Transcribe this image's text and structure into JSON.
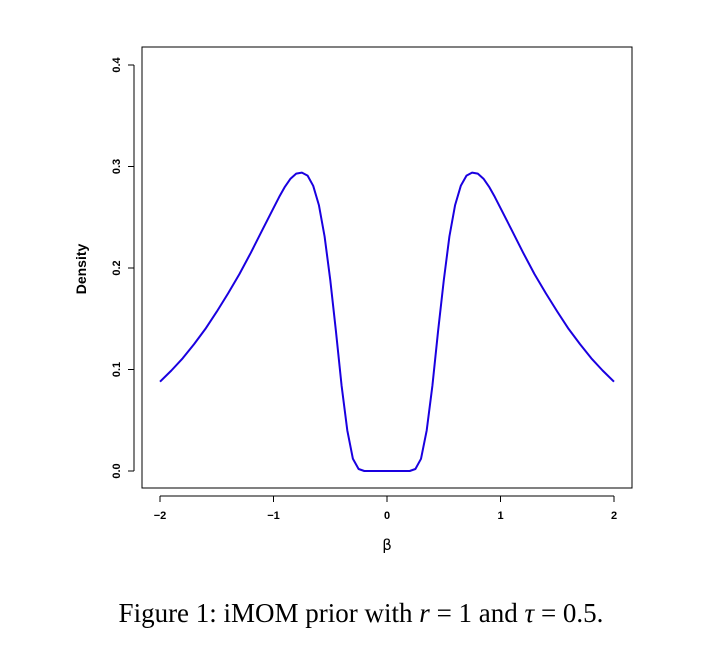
{
  "caption": {
    "prefix": "Figure 1: iMOM prior with ",
    "r_symbol": "r",
    "r_value": " = 1 and ",
    "tau_symbol": "τ",
    "tau_value": " = 0.5."
  },
  "chart_data": {
    "type": "line",
    "title": "",
    "xlabel": "β",
    "ylabel": "Density",
    "xlim": [
      -2,
      2
    ],
    "ylim": [
      0,
      0.4
    ],
    "x_ticks": [
      -2,
      -1,
      0,
      1,
      2
    ],
    "x_tick_labels": [
      "−2",
      "−1",
      "0",
      "1",
      "2"
    ],
    "y_ticks": [
      0.0,
      0.1,
      0.2,
      0.3,
      0.4
    ],
    "y_tick_labels": [
      "0.0",
      "0.1",
      "0.2",
      "0.3",
      "0.4"
    ],
    "grid": false,
    "line_color": "#1a00e0",
    "series": [
      {
        "x": [
          -2.0,
          -1.9,
          -1.8,
          -1.7,
          -1.6,
          -1.5,
          -1.4,
          -1.3,
          -1.2,
          -1.1,
          -1.0,
          -0.95,
          -0.9,
          -0.85,
          -0.8,
          -0.75,
          -0.7,
          -0.65,
          -0.6,
          -0.55,
          -0.5,
          -0.45,
          -0.4,
          -0.35,
          -0.3,
          -0.25,
          -0.2,
          -0.1,
          0.0,
          0.1,
          0.2,
          0.25,
          0.3,
          0.35,
          0.4,
          0.45,
          0.5,
          0.55,
          0.6,
          0.65,
          0.7,
          0.75,
          0.8,
          0.85,
          0.9,
          0.95,
          1.0,
          1.1,
          1.2,
          1.3,
          1.4,
          1.5,
          1.6,
          1.7,
          1.8,
          1.9,
          2.0
        ],
        "y": [
          0.088,
          0.099,
          0.111,
          0.125,
          0.14,
          0.157,
          0.175,
          0.194,
          0.215,
          0.237,
          0.259,
          0.27,
          0.28,
          0.288,
          0.293,
          0.294,
          0.291,
          0.281,
          0.262,
          0.231,
          0.188,
          0.138,
          0.084,
          0.04,
          0.012,
          0.002,
          0.0,
          0.0,
          0.0,
          0.0,
          0.0,
          0.002,
          0.012,
          0.04,
          0.084,
          0.138,
          0.188,
          0.231,
          0.262,
          0.281,
          0.291,
          0.294,
          0.293,
          0.288,
          0.28,
          0.27,
          0.259,
          0.237,
          0.215,
          0.194,
          0.175,
          0.157,
          0.14,
          0.125,
          0.111,
          0.099,
          0.088
        ]
      }
    ]
  }
}
